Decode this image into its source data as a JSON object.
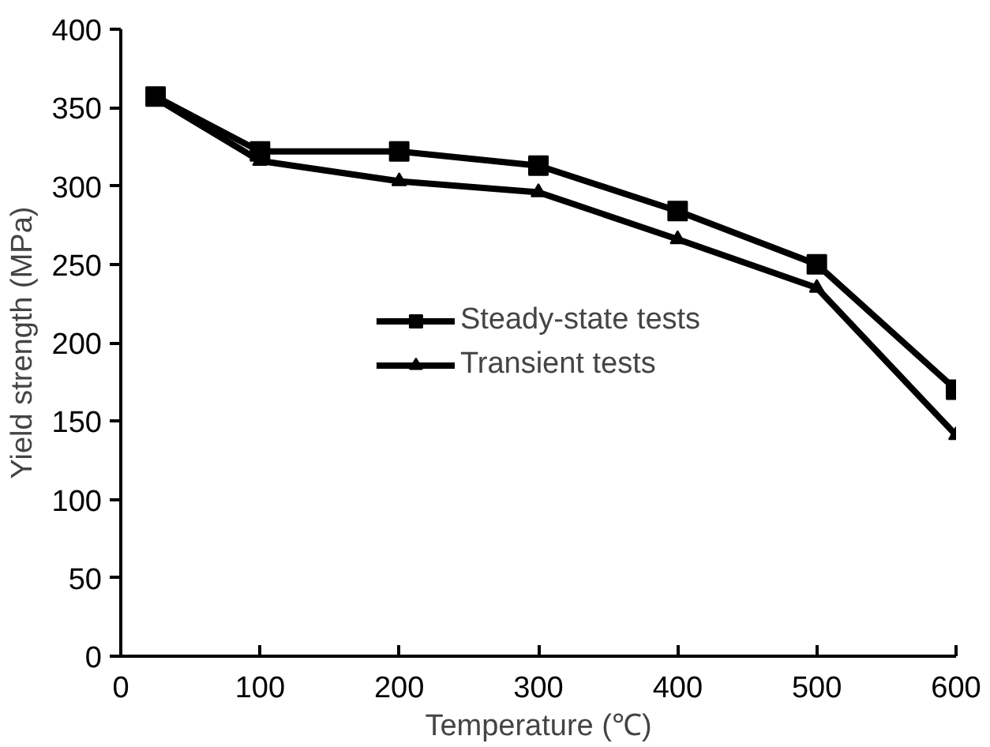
{
  "chart_data": {
    "type": "line",
    "xlabel": "Temperature (℃)",
    "ylabel": "Yield strength (MPa)",
    "x": [
      25,
      100,
      200,
      300,
      400,
      500,
      600
    ],
    "series": [
      {
        "name": "Steady-state tests",
        "color": "#000000",
        "marker": "square",
        "values": [
          357,
          322,
          322,
          313,
          284,
          250,
          170
        ]
      },
      {
        "name": "Transient tests",
        "color": "#000000",
        "marker": "triangle",
        "values": [
          356,
          316,
          303,
          296,
          266,
          235,
          141
        ]
      }
    ],
    "xlim": [
      0,
      600
    ],
    "xticks": [
      0,
      100,
      200,
      300,
      400,
      500,
      600
    ],
    "ylim": [
      0,
      400
    ],
    "yticks": [
      0,
      50,
      100,
      150,
      200,
      250,
      300,
      350,
      400
    ],
    "grid": false,
    "legend": "center",
    "line_style": "solid"
  }
}
